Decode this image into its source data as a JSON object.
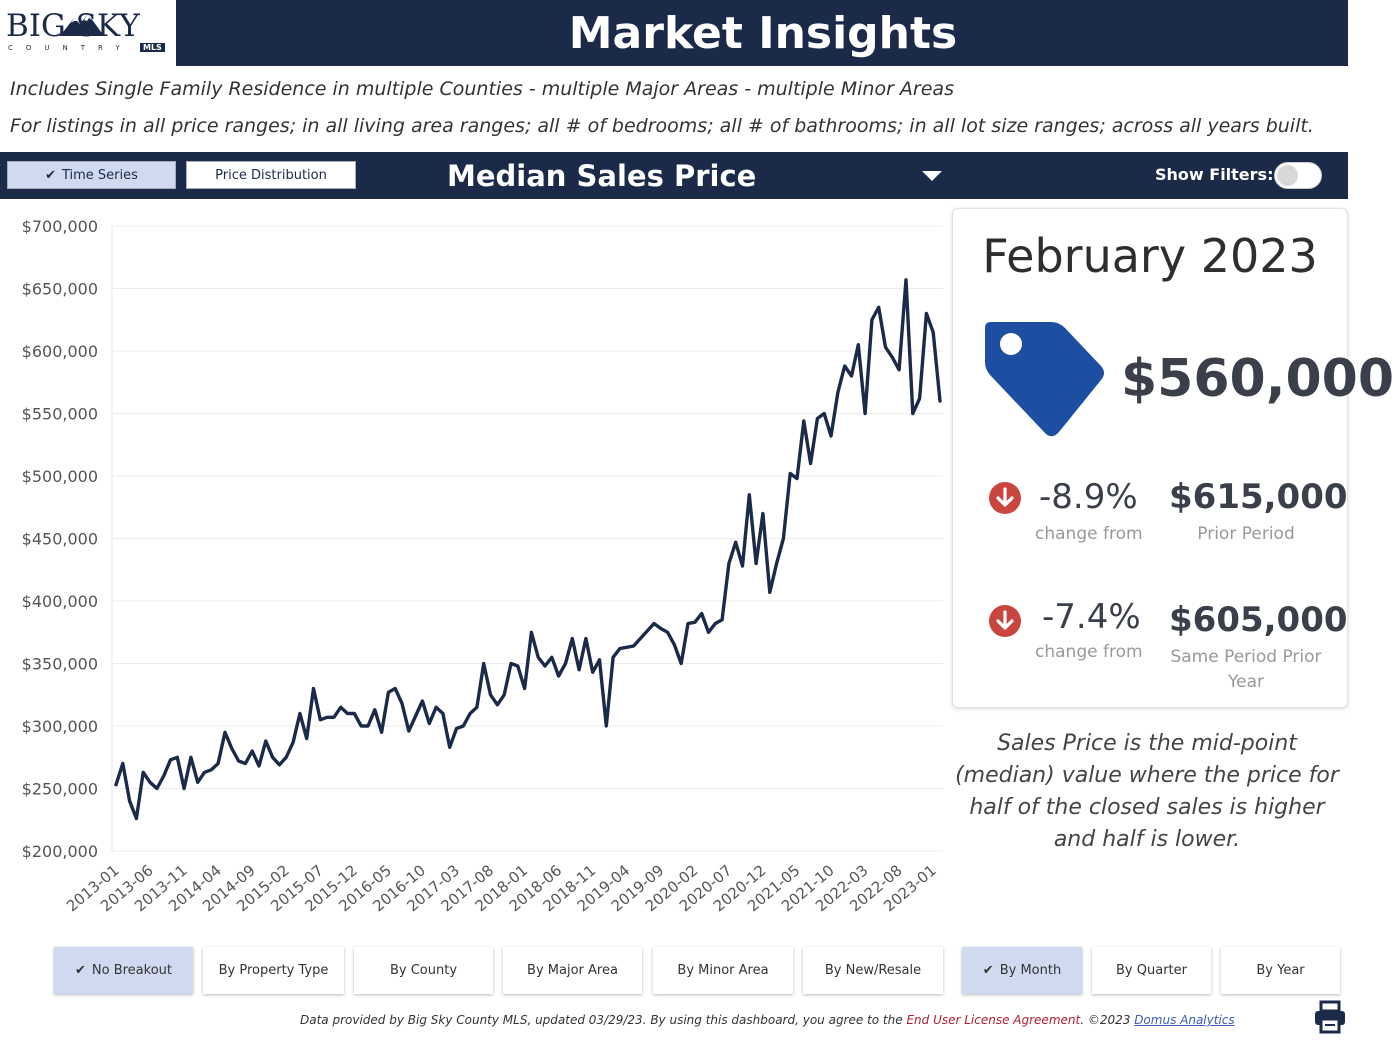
{
  "header": {
    "logo_text": "BIG SKY",
    "logo_sub": "COUNTRY",
    "logo_badge": "MLS",
    "title": "Market Insights"
  },
  "subtitles": {
    "line1": "Includes Single Family Residence in multiple Counties - multiple Major Areas - multiple Minor Areas",
    "line2": "For listings in all price ranges; in all living area ranges; all # of bedrooms; all # of bathrooms; in all lot size ranges; across all years built."
  },
  "toolbar": {
    "time_series": "Time Series",
    "price_distribution": "Price Distribution",
    "metric": "Median Sales Price",
    "show_filters": "Show Filters:"
  },
  "kpi": {
    "period": "February 2023",
    "value": "$560,000",
    "change1_pct": "-8.9%",
    "change1_label": "change from",
    "prior_value": "$615,000",
    "prior_label": "Prior Period",
    "change2_pct": "-7.4%",
    "change2_label": "change from",
    "same_prior_value": "$605,000",
    "same_prior_label": "Same Period Prior Year"
  },
  "note": "Sales Price is the mid-point (median) value where the price for half of the closed sales is higher and half is lower.",
  "breakouts": [
    {
      "label": "No Breakout",
      "active": true
    },
    {
      "label": "By Property Type",
      "active": false
    },
    {
      "label": "By County",
      "active": false
    },
    {
      "label": "By Major Area",
      "active": false
    },
    {
      "label": "By Minor Area",
      "active": false
    },
    {
      "label": "By New/Resale",
      "active": false
    }
  ],
  "periods": [
    {
      "label": "By Month",
      "active": true
    },
    {
      "label": "By Quarter",
      "active": false
    },
    {
      "label": "By Year",
      "active": false
    }
  ],
  "footer": {
    "text1": "Data provided by Big Sky County MLS, updated 03/29/23.  By using this dashboard, you agree to the ",
    "link1": "End User License Agreement",
    "text2": ".  ©2023 ",
    "link2": "Domus Analytics"
  },
  "colors": {
    "navy": "#1c2a4a",
    "line": "#1c2a4a",
    "tag_blue": "#1e4ea1",
    "down_red": "#c9453f",
    "active_button": "#cfdaf0"
  },
  "chart_data": {
    "type": "line",
    "title": "Median Sales Price",
    "xlabel": "",
    "ylabel": "",
    "ylim": [
      200000,
      700000
    ],
    "yticks": [
      200000,
      250000,
      300000,
      350000,
      400000,
      450000,
      500000,
      550000,
      600000,
      650000,
      700000
    ],
    "ytick_labels": [
      "$200,000",
      "$250,000",
      "$300,000",
      "$350,000",
      "$400,000",
      "$450,000",
      "$500,000",
      "$550,000",
      "$600,000",
      "$650,000",
      "$700,000"
    ],
    "xtick_labels": [
      "2013-01",
      "2013-06",
      "2013-11",
      "2014-04",
      "2014-09",
      "2015-02",
      "2015-07",
      "2015-12",
      "2016-05",
      "2016-10",
      "2017-03",
      "2017-08",
      "2018-01",
      "2018-06",
      "2018-11",
      "2019-04",
      "2019-09",
      "2020-02",
      "2020-07",
      "2020-12",
      "2021-05",
      "2021-10",
      "2022-03",
      "2022-08",
      "2023-01"
    ],
    "grid": true,
    "x_start": "2013-01",
    "x_end": "2023-02",
    "series": [
      {
        "name": "",
        "values": [
          253000,
          270000,
          240000,
          226000,
          263000,
          255000,
          250000,
          260000,
          273000,
          275000,
          250000,
          275000,
          255000,
          263000,
          265000,
          270000,
          295000,
          282000,
          272000,
          270000,
          280000,
          268000,
          288000,
          275000,
          269000,
          275000,
          287000,
          310000,
          290000,
          330000,
          305000,
          307000,
          307000,
          315000,
          310000,
          310000,
          300000,
          300000,
          313000,
          295000,
          327000,
          330000,
          318000,
          296000,
          308000,
          320000,
          302000,
          315000,
          310000,
          283000,
          298000,
          300000,
          310000,
          315000,
          350000,
          325000,
          317000,
          325000,
          350000,
          348000,
          330000,
          375000,
          355000,
          348000,
          355000,
          340000,
          350000,
          370000,
          345000,
          370000,
          343000,
          353000,
          300000,
          355000,
          362000,
          363000,
          364000,
          370000,
          376000,
          382000,
          378000,
          375000,
          365000,
          350000,
          382000,
          383000,
          390000,
          375000,
          382000,
          385000,
          430000,
          447000,
          428000,
          485000,
          430000,
          470000,
          407000,
          430000,
          450000,
          502000,
          498000,
          544000,
          510000,
          546000,
          550000,
          532000,
          567000,
          588000,
          580000,
          605000,
          550000,
          625000,
          635000,
          603000,
          595000,
          585000,
          657000,
          550000,
          562000,
          630000,
          615000,
          560000
        ]
      }
    ]
  }
}
